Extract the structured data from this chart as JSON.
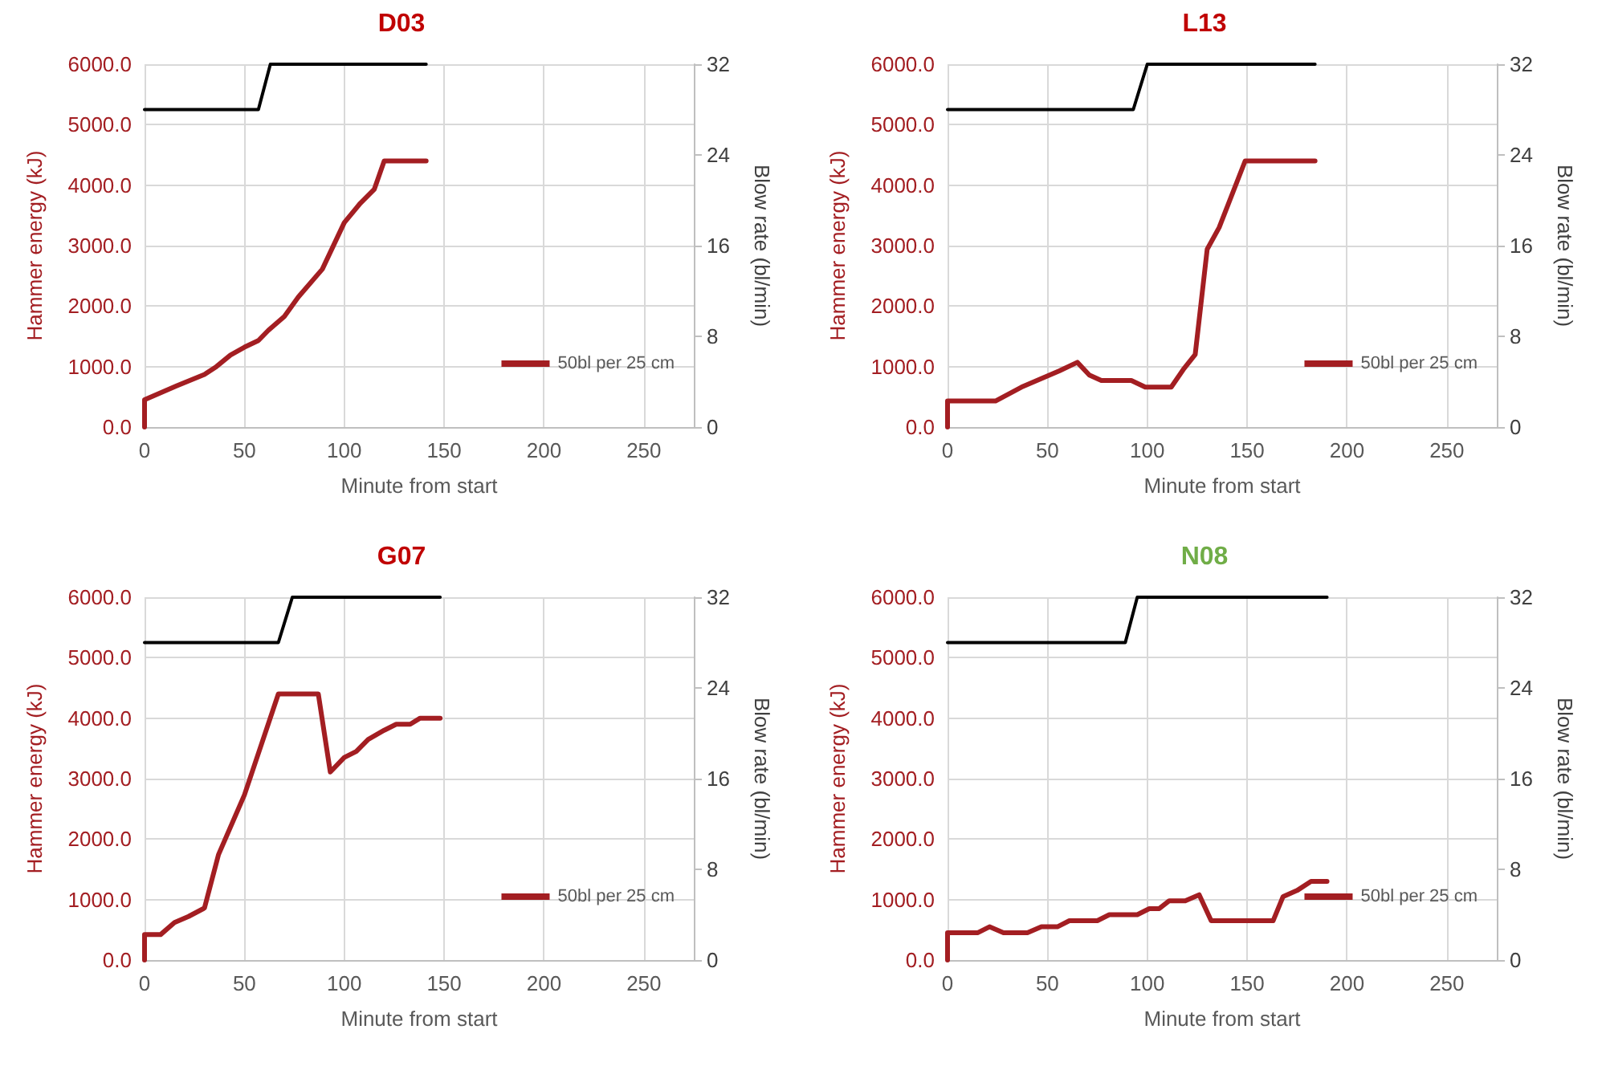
{
  "chart_data": [
    {
      "type": "line",
      "title": "D03",
      "xlabel": "Minute from start",
      "ylabel": "Hammer energy (kJ)",
      "y2label": "Blow rate (bl/min)",
      "xlim": [
        0,
        275
      ],
      "xticks": [
        0,
        50,
        100,
        150,
        200,
        250
      ],
      "ylim": [
        0,
        6000
      ],
      "yticks": [
        {
          "value": 0,
          "label": "0.0"
        },
        {
          "value": 1000,
          "label": "1000.0"
        },
        {
          "value": 2000,
          "label": "2000.0"
        },
        {
          "value": 3000,
          "label": "3000.0"
        },
        {
          "value": 4000,
          "label": "4000.0"
        },
        {
          "value": 5000,
          "label": "5000.0"
        },
        {
          "value": 6000,
          "label": "6000.0"
        }
      ],
      "y2lim": [
        0,
        32
      ],
      "y2ticks": [
        0,
        8,
        16,
        24,
        32
      ],
      "grid": true,
      "legend": "bottom right",
      "marker": "none",
      "line_style": "solid",
      "series": [
        {
          "name": "50bl per 25 cm",
          "color": "#a31e22",
          "x": [
            0,
            0,
            16,
            30,
            36,
            43,
            50,
            57,
            62,
            70,
            77,
            89,
            100,
            108,
            115,
            120,
            141
          ],
          "values": [
            0,
            450,
            680,
            870,
            1000,
            1190,
            1320,
            1430,
            1600,
            1830,
            2150,
            2610,
            3380,
            3700,
            3930,
            4400,
            4400
          ]
        },
        {
          "color": "#000000",
          "axis": "y2",
          "x": [
            0,
            57,
            63,
            141
          ],
          "values": [
            28,
            28,
            32,
            32
          ]
        }
      ]
    },
    {
      "type": "line",
      "title": "L13",
      "xlabel": "Minute from start",
      "ylabel": "Hammer energy (kJ)",
      "y2label": "Blow rate (bl/min)",
      "xlim": [
        0,
        275
      ],
      "xticks": [
        0,
        50,
        100,
        150,
        200,
        250
      ],
      "ylim": [
        0,
        6000
      ],
      "yticks": [
        {
          "value": 0,
          "label": "0.0"
        },
        {
          "value": 1000,
          "label": "1000.0"
        },
        {
          "value": 2000,
          "label": "2000.0"
        },
        {
          "value": 3000,
          "label": "3000.0"
        },
        {
          "value": 4000,
          "label": "4000.0"
        },
        {
          "value": 5000,
          "label": "5000.0"
        },
        {
          "value": 6000,
          "label": "6000.0"
        }
      ],
      "y2lim": [
        0,
        32
      ],
      "y2ticks": [
        0,
        8,
        16,
        24,
        32
      ],
      "grid": true,
      "legend": "bottom right",
      "marker": "none",
      "line_style": "solid",
      "series": [
        {
          "name": "50bl per 25 cm",
          "color": "#a31e22",
          "x": [
            0,
            0,
            24,
            37,
            56,
            65,
            71,
            77,
            92,
            99,
            112,
            118,
            124,
            130,
            136,
            149,
            184
          ],
          "values": [
            0,
            430,
            430,
            660,
            930,
            1070,
            860,
            770,
            770,
            660,
            660,
            950,
            1200,
            2940,
            3300,
            4400,
            4400
          ]
        },
        {
          "color": "#000000",
          "axis": "y2",
          "x": [
            0,
            93,
            100,
            184
          ],
          "values": [
            28,
            28,
            32,
            32
          ]
        }
      ]
    },
    {
      "type": "line",
      "title": "G07",
      "xlabel": "Minute from start",
      "ylabel": "Hammer energy (kJ)",
      "y2label": "Blow rate (bl/min)",
      "xlim": [
        0,
        275
      ],
      "xticks": [
        0,
        50,
        100,
        150,
        200,
        250
      ],
      "ylim": [
        0,
        6000
      ],
      "yticks": [
        {
          "value": 0,
          "label": "0.0"
        },
        {
          "value": 1000,
          "label": "1000.0"
        },
        {
          "value": 2000,
          "label": "2000.0"
        },
        {
          "value": 3000,
          "label": "3000.0"
        },
        {
          "value": 4000,
          "label": "4000.0"
        },
        {
          "value": 5000,
          "label": "5000.0"
        },
        {
          "value": 6000,
          "label": "6000.0"
        }
      ],
      "y2lim": [
        0,
        32
      ],
      "y2ticks": [
        0,
        8,
        16,
        24,
        32
      ],
      "grid": true,
      "legend": "bottom right",
      "marker": "none",
      "line_style": "solid",
      "series": [
        {
          "name": "50bl per 25 cm",
          "color": "#a31e22",
          "x": [
            0,
            0,
            8,
            15,
            22,
            30,
            37,
            50,
            67,
            87,
            93,
            100,
            106,
            112,
            120,
            126,
            133,
            138,
            148
          ],
          "values": [
            0,
            420,
            420,
            620,
            720,
            860,
            1740,
            2730,
            4400,
            4400,
            3110,
            3350,
            3450,
            3650,
            3800,
            3900,
            3900,
            4000,
            4000
          ]
        },
        {
          "color": "#000000",
          "axis": "y2",
          "x": [
            0,
            67,
            74,
            148
          ],
          "values": [
            28,
            28,
            32,
            32
          ]
        }
      ]
    },
    {
      "type": "line",
      "title": "N08",
      "xlabel": "Minute from start",
      "ylabel": "Hammer energy (kJ)",
      "y2label": "Blow rate (bl/min)",
      "xlim": [
        0,
        275
      ],
      "xticks": [
        0,
        50,
        100,
        150,
        200,
        250
      ],
      "ylim": [
        0,
        6000
      ],
      "yticks": [
        {
          "value": 0,
          "label": "0.0"
        },
        {
          "value": 1000,
          "label": "1000.0"
        },
        {
          "value": 2000,
          "label": "2000.0"
        },
        {
          "value": 3000,
          "label": "3000.0"
        },
        {
          "value": 4000,
          "label": "4000.0"
        },
        {
          "value": 5000,
          "label": "5000.0"
        },
        {
          "value": 6000,
          "label": "6000.0"
        }
      ],
      "y2lim": [
        0,
        32
      ],
      "y2ticks": [
        0,
        8,
        16,
        24,
        32
      ],
      "grid": true,
      "legend": "bottom right",
      "marker": "none",
      "line_style": "solid",
      "series": [
        {
          "name": "50bl per 25 cm",
          "color": "#a31e22",
          "x": [
            0,
            0,
            15,
            21,
            28,
            40,
            47,
            55,
            61,
            75,
            81,
            95,
            101,
            106,
            111,
            119,
            126,
            132,
            163,
            168,
            175,
            182,
            190
          ],
          "values": [
            0,
            450,
            450,
            550,
            450,
            450,
            550,
            550,
            650,
            650,
            750,
            750,
            850,
            850,
            980,
            980,
            1080,
            650,
            650,
            1050,
            1150,
            1300,
            1300
          ]
        },
        {
          "color": "#000000",
          "axis": "y2",
          "x": [
            0,
            89,
            95,
            190
          ],
          "values": [
            28,
            28,
            32,
            32
          ]
        }
      ]
    }
  ]
}
